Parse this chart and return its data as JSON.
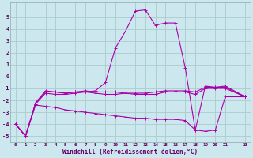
{
  "xlabel": "Windchill (Refroidissement éolien,°C)",
  "bg_color": "#cce8ee",
  "grid_color": "#aacccc",
  "line_color": "#aa00aa",
  "xlim": [
    -0.5,
    23.5
  ],
  "ylim": [
    -5.5,
    6.2
  ],
  "xticks": [
    0,
    1,
    2,
    3,
    4,
    5,
    6,
    7,
    8,
    9,
    10,
    11,
    12,
    13,
    14,
    15,
    16,
    17,
    18,
    19,
    20,
    21,
    23
  ],
  "xtick_labels": [
    "0",
    "1",
    "2",
    "3",
    "4",
    "5",
    "6",
    "7",
    "8",
    "9",
    "10",
    "11",
    "12",
    "13",
    "14",
    "15",
    "16",
    "17",
    "18",
    "19",
    "20",
    "21",
    "23"
  ],
  "yticks": [
    -5,
    -4,
    -3,
    -2,
    -1,
    0,
    1,
    2,
    3,
    4,
    5
  ],
  "lines": [
    {
      "x": [
        0,
        1,
        2,
        3,
        4,
        5,
        6,
        7,
        8,
        9,
        10,
        11,
        12,
        13,
        14,
        15,
        16,
        17,
        18,
        19,
        20,
        21,
        23
      ],
      "y": [
        -4.0,
        -5.0,
        -2.2,
        -1.2,
        -1.3,
        -1.4,
        -1.3,
        -1.3,
        -1.2,
        -0.5,
        2.4,
        3.8,
        5.5,
        5.6,
        4.3,
        4.5,
        4.5,
        0.7,
        -4.5,
        -0.8,
        -0.9,
        -0.8,
        -1.7
      ]
    },
    {
      "x": [
        0,
        1,
        2,
        3,
        4,
        5,
        6,
        7,
        8,
        9,
        10,
        11,
        12,
        13,
        14,
        15,
        16,
        17,
        18,
        19,
        20,
        21,
        23
      ],
      "y": [
        -4.0,
        -5.0,
        -2.3,
        -1.3,
        -1.3,
        -1.4,
        -1.3,
        -1.2,
        -1.3,
        -1.3,
        -1.3,
        -1.4,
        -1.4,
        -1.4,
        -1.3,
        -1.2,
        -1.2,
        -1.2,
        -1.3,
        -0.9,
        -0.9,
        -0.9,
        -1.7
      ]
    },
    {
      "x": [
        0,
        1,
        2,
        3,
        4,
        5,
        6,
        7,
        8,
        9,
        10,
        11,
        12,
        13,
        14,
        15,
        16,
        17,
        18,
        19,
        20,
        21,
        23
      ],
      "y": [
        -4.0,
        -5.0,
        -2.4,
        -2.5,
        -2.6,
        -2.8,
        -2.9,
        -3.0,
        -3.1,
        -3.2,
        -3.3,
        -3.4,
        -3.5,
        -3.5,
        -3.6,
        -3.6,
        -3.6,
        -3.7,
        -4.5,
        -4.6,
        -4.5,
        -1.7,
        -1.7
      ]
    },
    {
      "x": [
        0,
        1,
        2,
        3,
        4,
        5,
        6,
        7,
        8,
        9,
        10,
        11,
        12,
        13,
        14,
        15,
        16,
        17,
        18,
        19,
        20,
        21,
        23
      ],
      "y": [
        -4.0,
        -5.0,
        -2.3,
        -1.4,
        -1.5,
        -1.5,
        -1.4,
        -1.3,
        -1.4,
        -1.5,
        -1.5,
        -1.4,
        -1.5,
        -1.5,
        -1.5,
        -1.3,
        -1.3,
        -1.3,
        -1.5,
        -1.0,
        -1.0,
        -1.0,
        -1.7
      ]
    }
  ]
}
